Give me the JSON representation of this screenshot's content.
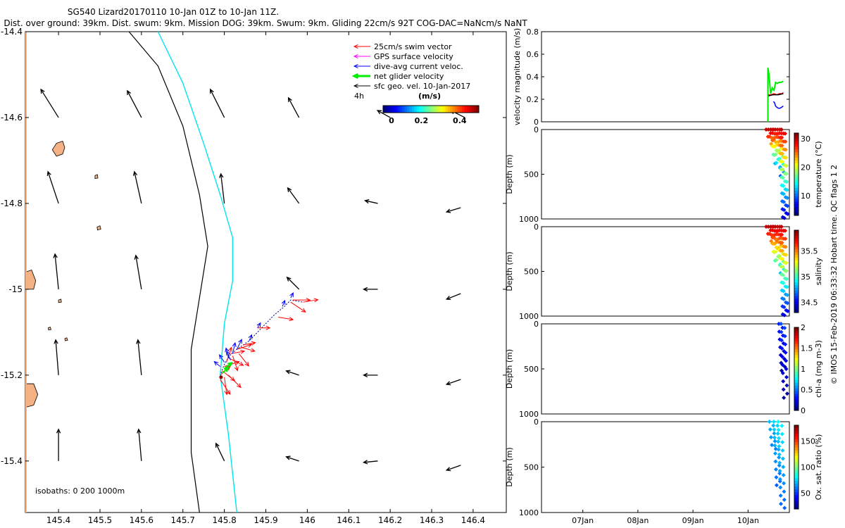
{
  "title": {
    "line1": "SG540 Lizard20170110 10-Jan 01Z to 10-Jan 11Z.",
    "line2": "Dist. over ground: 39km. Dist. swum: 9km. Mission DOG: 39km. Swum: 9km. Gliding 22cm/s 92T COG-DAC=NaNcm/s NaNT"
  },
  "side_note": "© IMOS 15-Feb-2019 06:33:32 Hobart time. QC flags 1  2",
  "colors": {
    "land": "#f4b183",
    "isobath_200": "#000000",
    "isobath_1000": "#00e5ee",
    "swim": "#ff0000",
    "gps": "#ff00ff",
    "dac": "#0000ff",
    "net": "#00ee00",
    "sfc": "#000000",
    "track": "#000080"
  },
  "chart_data": [
    {
      "id": "map",
      "type": "scatter",
      "title": "Glider track map with velocity vectors",
      "xlim": [
        145.32,
        146.48
      ],
      "ylim": [
        -15.52,
        -14.4
      ],
      "xticks": [
        145.4,
        145.5,
        145.6,
        145.7,
        145.8,
        145.9,
        146,
        146.1,
        146.2,
        146.3,
        146.4
      ],
      "xticklabels": [
        "145.4",
        "145.5",
        "145.6",
        "145.7",
        "145.8",
        "145.9",
        "146",
        "146.1",
        "146.2",
        "146.3",
        "146.4"
      ],
      "yticks": [
        -14.4,
        -14.6,
        -14.8,
        -15,
        -15.2,
        -15.4
      ],
      "yticklabels": [
        "-14.4",
        "-14.6",
        "-14.8",
        "-15",
        "-15.2",
        "-15.4"
      ],
      "isobaths_label": "isobaths: 0   200  1000m",
      "legend": {
        "position": "top-right",
        "entries": [
          {
            "label": "25cm/s swim vector",
            "color_key": "swim"
          },
          {
            "label": "GPS surface velocity",
            "color_key": "gps"
          },
          {
            "label": "dive-avg current veloc.",
            "color_key": "dac"
          },
          {
            "label": "net glider velocity",
            "color_key": "net"
          },
          {
            "label": "sfc geo. vel. 10-Jan-2017",
            "color_key": "sfc"
          }
        ],
        "time_label": "4h",
        "colorbar_unit": "(m/s)",
        "colorbar_ticks": [
          0,
          0.2,
          0.4
        ],
        "colorbar_ticklabels": [
          "0",
          "0.2",
          "0.4"
        ],
        "colorbar_range": [
          0,
          0.5
        ]
      },
      "isobath_200": [
        [
          145.57,
          -14.4
        ],
        [
          145.64,
          -14.48
        ],
        [
          145.7,
          -14.62
        ],
        [
          145.74,
          -14.78
        ],
        [
          145.76,
          -14.9
        ],
        [
          145.74,
          -15.02
        ],
        [
          145.72,
          -15.14
        ],
        [
          145.72,
          -15.26
        ],
        [
          145.72,
          -15.38
        ],
        [
          145.74,
          -15.52
        ]
      ],
      "isobath_1000": [
        [
          145.64,
          -14.4
        ],
        [
          145.7,
          -14.52
        ],
        [
          145.75,
          -14.66
        ],
        [
          145.79,
          -14.78
        ],
        [
          145.82,
          -14.88
        ],
        [
          145.82,
          -14.98
        ],
        [
          145.8,
          -15.08
        ],
        [
          145.79,
          -15.2
        ],
        [
          145.81,
          -15.34
        ],
        [
          145.83,
          -15.52
        ]
      ],
      "land": [
        {
          "name": "island-1",
          "points": [
            [
              145.395,
              -14.66
            ],
            [
              145.41,
              -14.655
            ],
            [
              145.415,
              -14.67
            ],
            [
              145.41,
              -14.685
            ],
            [
              145.395,
              -14.69
            ],
            [
              145.385,
              -14.675
            ]
          ]
        },
        {
          "name": "island-2",
          "points": [
            [
              145.32,
              -14.96
            ],
            [
              145.335,
              -14.955
            ],
            [
              145.345,
              -14.98
            ],
            [
              145.34,
              -15.0
            ],
            [
              145.32,
              -15.0
            ]
          ]
        },
        {
          "name": "island-3",
          "points": [
            [
              145.32,
              -15.22
            ],
            [
              145.34,
              -15.22
            ],
            [
              145.35,
              -15.245
            ],
            [
              145.34,
              -15.27
            ],
            [
              145.32,
              -15.275
            ]
          ]
        },
        {
          "name": "island-4",
          "points": [
            [
              145.488,
              -14.735
            ],
            [
              145.494,
              -14.733
            ],
            [
              145.495,
              -14.741
            ],
            [
              145.488,
              -14.742
            ]
          ]
        },
        {
          "name": "island-5",
          "points": [
            [
              145.493,
              -14.855
            ],
            [
              145.5,
              -14.852
            ],
            [
              145.502,
              -14.86
            ],
            [
              145.494,
              -14.862
            ]
          ]
        },
        {
          "name": "island-6",
          "points": [
            [
              145.375,
              -15.09
            ],
            [
              145.38,
              -15.088
            ],
            [
              145.382,
              -15.094
            ],
            [
              145.376,
              -15.095
            ]
          ]
        },
        {
          "name": "island-7",
          "points": [
            [
              145.4,
              -15.025
            ],
            [
              145.406,
              -15.023
            ],
            [
              145.407,
              -15.03
            ],
            [
              145.4,
              -15.031
            ]
          ]
        },
        {
          "name": "island-8",
          "points": [
            [
              145.415,
              -15.115
            ],
            [
              145.42,
              -15.113
            ],
            [
              145.422,
              -15.119
            ],
            [
              145.416,
              -15.12
            ]
          ]
        }
      ],
      "sfc_vectors": [
        [
          145.4,
          -14.6,
          -0.25,
          0.4
        ],
        [
          145.6,
          -14.6,
          -0.2,
          0.38
        ],
        [
          145.8,
          -14.6,
          -0.2,
          0.4
        ],
        [
          145.98,
          -14.6,
          -0.15,
          0.28
        ],
        [
          146.2,
          -14.6,
          -0.18,
          0.1
        ],
        [
          146.38,
          -14.6,
          -0.2,
          0.1
        ],
        [
          145.4,
          -14.8,
          -0.15,
          0.45
        ],
        [
          145.6,
          -14.8,
          -0.1,
          0.45
        ],
        [
          145.8,
          -14.8,
          -0.05,
          0.42
        ],
        [
          145.98,
          -14.8,
          -0.16,
          0.22
        ],
        [
          146.17,
          -14.8,
          -0.18,
          0.04
        ],
        [
          146.37,
          -14.81,
          -0.2,
          -0.06
        ],
        [
          145.4,
          -15.0,
          -0.05,
          0.5
        ],
        [
          145.6,
          -15.0,
          -0.08,
          0.48
        ],
        [
          145.98,
          -15.0,
          -0.17,
          0.17
        ],
        [
          146.17,
          -15.0,
          -0.2,
          0.0
        ],
        [
          146.37,
          -15.01,
          -0.2,
          -0.08
        ],
        [
          145.4,
          -15.2,
          -0.04,
          0.5
        ],
        [
          145.6,
          -15.2,
          -0.05,
          0.5
        ],
        [
          145.98,
          -15.2,
          -0.18,
          0.06
        ],
        [
          146.17,
          -15.2,
          -0.2,
          0.0
        ],
        [
          146.37,
          -15.21,
          -0.2,
          -0.07
        ],
        [
          145.4,
          -15.4,
          0.0,
          0.45
        ],
        [
          145.6,
          -15.4,
          -0.04,
          0.45
        ],
        [
          145.8,
          -15.4,
          -0.12,
          0.25
        ],
        [
          145.98,
          -15.4,
          -0.18,
          0.06
        ],
        [
          146.17,
          -15.4,
          -0.2,
          -0.02
        ],
        [
          146.37,
          -15.41,
          -0.2,
          -0.07
        ]
      ],
      "track": [
        [
          145.792,
          -15.195
        ],
        [
          145.8,
          -15.175
        ],
        [
          145.812,
          -15.155
        ],
        [
          145.83,
          -15.14
        ],
        [
          145.86,
          -15.12
        ],
        [
          145.89,
          -15.09
        ],
        [
          145.92,
          -15.06
        ],
        [
          145.945,
          -15.04
        ],
        [
          145.96,
          -15.025
        ],
        [
          145.99,
          -15.03
        ]
      ],
      "swim_vectors": [
        [
          145.79,
          -15.2,
          0.2,
          0.18
        ],
        [
          145.795,
          -15.19,
          0.25,
          -0.2
        ],
        [
          145.8,
          -15.18,
          0.3,
          0.1
        ],
        [
          145.805,
          -15.17,
          0.1,
          0.3
        ],
        [
          145.81,
          -15.16,
          0.3,
          -0.15
        ],
        [
          145.815,
          -15.15,
          0.28,
          0.05
        ],
        [
          145.82,
          -15.155,
          0.1,
          -0.3
        ],
        [
          145.83,
          -15.14,
          0.3,
          0.1
        ],
        [
          145.835,
          -15.15,
          0.2,
          -0.25
        ],
        [
          145.84,
          -15.135,
          0.28,
          -0.08
        ],
        [
          145.845,
          -15.13,
          0.25,
          0.05
        ],
        [
          145.8,
          -15.205,
          0.05,
          -0.35
        ],
        [
          145.79,
          -15.21,
          0.2,
          -0.3
        ],
        [
          145.81,
          -15.2,
          0.25,
          -0.25
        ],
        [
          145.93,
          -15.065,
          0.3,
          -0.05
        ],
        [
          145.96,
          -15.03,
          0.3,
          -0.2
        ],
        [
          145.965,
          -15.025,
          0.35,
          0.0
        ],
        [
          145.88,
          -15.09,
          0.25,
          0.0
        ],
        [
          145.99,
          -15.03,
          0.3,
          0.05
        ]
      ],
      "dac_vectors": [
        [
          145.8,
          -15.17,
          -0.1,
          0.15
        ],
        [
          145.81,
          -15.16,
          -0.05,
          0.2
        ],
        [
          145.82,
          -15.15,
          0.05,
          0.22
        ],
        [
          145.83,
          -15.14,
          0.1,
          0.2
        ],
        [
          145.79,
          -15.18,
          -0.12,
          0.1
        ],
        [
          145.815,
          -15.165,
          -0.08,
          0.18
        ],
        [
          145.86,
          -15.12,
          0.05,
          0.12
        ],
        [
          145.88,
          -15.09,
          0.06,
          0.1
        ],
        [
          145.94,
          -15.04,
          0.05,
          0.12
        ],
        [
          145.96,
          -15.02,
          0.05,
          0.1
        ]
      ],
      "net_vectors": [
        [
          145.795,
          -15.195,
          0.12,
          0.1
        ],
        [
          145.8,
          -15.185,
          0.15,
          0.12
        ]
      ]
    },
    {
      "id": "velocity",
      "type": "line",
      "ylabel": "velocity magnitude (m/s)",
      "ylim": [
        0,
        0.8
      ],
      "yticks": [
        0,
        0.2,
        0.4,
        0.6,
        0.8
      ],
      "yticklabels": [
        "0",
        "0.2",
        "0.4",
        "0.6",
        "0.8"
      ],
      "series": [
        {
          "name": "net glider velocity",
          "color_key": "net",
          "x": [
            10.36,
            10.36,
            10.38,
            10.41,
            10.44,
            10.47,
            10.5,
            10.53,
            10.56,
            10.6,
            10.64
          ],
          "values": [
            0.0,
            0.48,
            0.42,
            0.25,
            0.3,
            0.28,
            0.35,
            0.34,
            0.35,
            0.35,
            0.36
          ]
        },
        {
          "name": "dive-avg current veloc.",
          "color_key": "dac",
          "x": [
            10.46,
            10.48,
            10.5,
            10.52,
            10.55,
            10.58,
            10.61,
            10.64
          ],
          "values": [
            0.18,
            0.17,
            0.14,
            0.13,
            0.12,
            0.12,
            0.13,
            0.14
          ]
        },
        {
          "name": "swim",
          "color_key": "swim",
          "x": [
            10.37,
            10.42,
            10.47,
            10.52,
            10.57,
            10.62,
            10.64
          ],
          "values": [
            0.24,
            0.24,
            0.25,
            0.24,
            0.25,
            0.25,
            0.26
          ]
        },
        {
          "name": "sfc",
          "color_key": "sfc",
          "x": [
            10.37,
            10.45,
            10.55,
            10.64
          ],
          "values": [
            0.23,
            0.24,
            0.24,
            0.25
          ]
        }
      ]
    },
    {
      "id": "temperature",
      "type": "scatter",
      "ylabel": "Depth (m)",
      "clabel": "temperature (°C)",
      "ylim": [
        0,
        1000
      ],
      "yticks": [
        0,
        500,
        1000
      ],
      "clim": [
        3,
        32
      ],
      "cticks": [
        10,
        20,
        30
      ],
      "casts": [
        {
          "x": 10.36,
          "maxdepth": 120,
          "top": 30,
          "bottom": 26
        },
        {
          "x": 10.4,
          "maxdepth": 160,
          "top": 30,
          "bottom": 24
        },
        {
          "x": 10.44,
          "maxdepth": 280,
          "top": 30,
          "bottom": 16
        },
        {
          "x": 10.47,
          "maxdepth": 380,
          "top": 30,
          "bottom": 12
        },
        {
          "x": 10.5,
          "maxdepth": 420,
          "top": 30,
          "bottom": 11
        },
        {
          "x": 10.53,
          "maxdepth": 250,
          "top": 30,
          "bottom": 18
        },
        {
          "x": 10.57,
          "maxdepth": 520,
          "top": 30,
          "bottom": 9
        },
        {
          "x": 10.61,
          "maxdepth": 980,
          "top": 30,
          "bottom": 5
        },
        {
          "x": 10.64,
          "maxdepth": 990,
          "top": 30,
          "bottom": 5
        }
      ]
    },
    {
      "id": "salinity",
      "type": "scatter",
      "ylabel": "Depth (m)",
      "clabel": "salinity",
      "ylim": [
        0,
        1000
      ],
      "yticks": [
        0,
        500,
        1000
      ],
      "clim": [
        34.3,
        35.9
      ],
      "cticks": [
        34.5,
        35,
        35.5
      ],
      "casts": [
        {
          "x": 10.36,
          "maxdepth": 120,
          "top": 35.8,
          "bottom": 35.6
        },
        {
          "x": 10.4,
          "maxdepth": 160,
          "top": 35.8,
          "bottom": 35.5
        },
        {
          "x": 10.44,
          "maxdepth": 280,
          "top": 35.8,
          "bottom": 35.3
        },
        {
          "x": 10.47,
          "maxdepth": 380,
          "top": 35.8,
          "bottom": 35.0
        },
        {
          "x": 10.5,
          "maxdepth": 420,
          "top": 35.8,
          "bottom": 35.0
        },
        {
          "x": 10.53,
          "maxdepth": 250,
          "top": 35.8,
          "bottom": 35.4
        },
        {
          "x": 10.57,
          "maxdepth": 520,
          "top": 35.8,
          "bottom": 34.8
        },
        {
          "x": 10.61,
          "maxdepth": 980,
          "top": 35.8,
          "bottom": 34.45
        },
        {
          "x": 10.64,
          "maxdepth": 990,
          "top": 35.8,
          "bottom": 34.45
        }
      ]
    },
    {
      "id": "chla",
      "type": "scatter",
      "ylabel": "Depth (m)",
      "clabel": "chl-a (mg m-3)",
      "ylim": [
        0,
        1000
      ],
      "yticks": [
        0,
        500,
        1000
      ],
      "clim": [
        0,
        2
      ],
      "cticks": [
        0,
        0.5,
        1,
        1.5,
        2
      ],
      "casts": [
        {
          "x": 10.59,
          "maxdepth": 520,
          "top": 0.3,
          "bottom": 0.05
        },
        {
          "x": 10.63,
          "maxdepth": 820,
          "top": 0.4,
          "bottom": 0.05
        }
      ]
    },
    {
      "id": "oxygen",
      "type": "scatter",
      "ylabel": "Depth (m)",
      "clabel": "Ox. sat. ratio (%)",
      "ylim": [
        0,
        1000
      ],
      "yticks": [
        0,
        500,
        1000
      ],
      "clim": [
        20,
        180
      ],
      "cticks": [
        50,
        100,
        150
      ],
      "xticks": [
        7,
        8,
        9,
        10
      ],
      "xticklabels": [
        "07Jan",
        "08Jan",
        "09Jan",
        "10Jan"
      ],
      "xlim": [
        6.25,
        10.75
      ],
      "casts": [
        {
          "x": 10.42,
          "maxdepth": 300,
          "top": 70,
          "bottom": 60
        },
        {
          "x": 10.5,
          "maxdepth": 700,
          "top": 75,
          "bottom": 55
        },
        {
          "x": 10.58,
          "maxdepth": 950,
          "top": 80,
          "bottom": 55
        }
      ]
    }
  ]
}
